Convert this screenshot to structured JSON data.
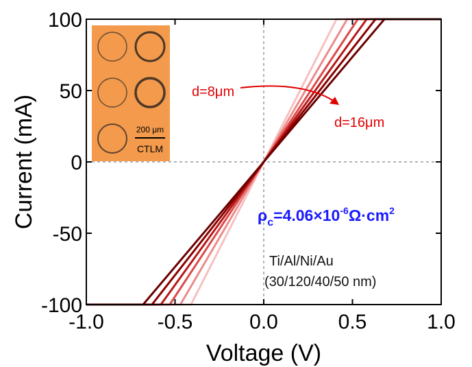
{
  "chart_data": {
    "type": "line",
    "xlabel": "Voltage (V)",
    "ylabel": "Current (mA)",
    "xlim": [
      -1.0,
      1.0
    ],
    "ylim": [
      -100,
      100
    ],
    "x_ticks": [
      "-1.0",
      "-0.5",
      "0.0",
      "0.5",
      "1.0"
    ],
    "y_ticks": [
      "100",
      "50",
      "0",
      "-50",
      "-100"
    ],
    "x_tick_values": [
      -1.0,
      -0.5,
      0.0,
      0.5,
      1.0
    ],
    "y_tick_values": [
      100,
      50,
      0,
      -50,
      -100
    ],
    "zero_lines": "dashed",
    "series": [
      {
        "color": "#f6c0c0",
        "x": [
          -1.0,
          -0.41,
          0.41,
          1.0
        ],
        "y": [
          -100,
          -100,
          100,
          100
        ]
      },
      {
        "color": "#ec8a8a",
        "x": [
          -1.0,
          -0.47,
          0.47,
          1.0
        ],
        "y": [
          -100,
          -100,
          100,
          100
        ]
      },
      {
        "color": "#dc4a4a",
        "x": [
          -1.0,
          -0.53,
          0.53,
          1.0
        ],
        "y": [
          -100,
          -100,
          100,
          100
        ]
      },
      {
        "color": "#b81818",
        "x": [
          -1.0,
          -0.58,
          0.58,
          1.0
        ],
        "y": [
          -100,
          -100,
          100,
          100
        ]
      },
      {
        "color": "#8b0000",
        "x": [
          -1.0,
          -0.63,
          0.63,
          1.0
        ],
        "y": [
          -100,
          -100,
          100,
          100
        ]
      },
      {
        "color": "#6b0000",
        "x": [
          -1.0,
          -0.68,
          0.68,
          1.0
        ],
        "y": [
          -100,
          -100,
          100,
          100
        ]
      }
    ],
    "annotations": {
      "d_small": "d=8μm",
      "d_large": "d=16μm",
      "rho_symbol": "ρ",
      "rho_sub": "c",
      "rho_value": "=4.06×10",
      "rho_exp": "-6",
      "rho_unit": "Ω·cm",
      "rho_unit_exp": "2",
      "stack_line1": "Ti/Al/Ni/Au",
      "stack_line2": "(30/120/40/50 nm)",
      "inset_scale": "200 μm",
      "inset_label": "CTLM"
    },
    "colors": {
      "annotation_red": "#e00000",
      "rho_blue": "#1a1aff",
      "inset_bg": "#f39a4c"
    }
  }
}
